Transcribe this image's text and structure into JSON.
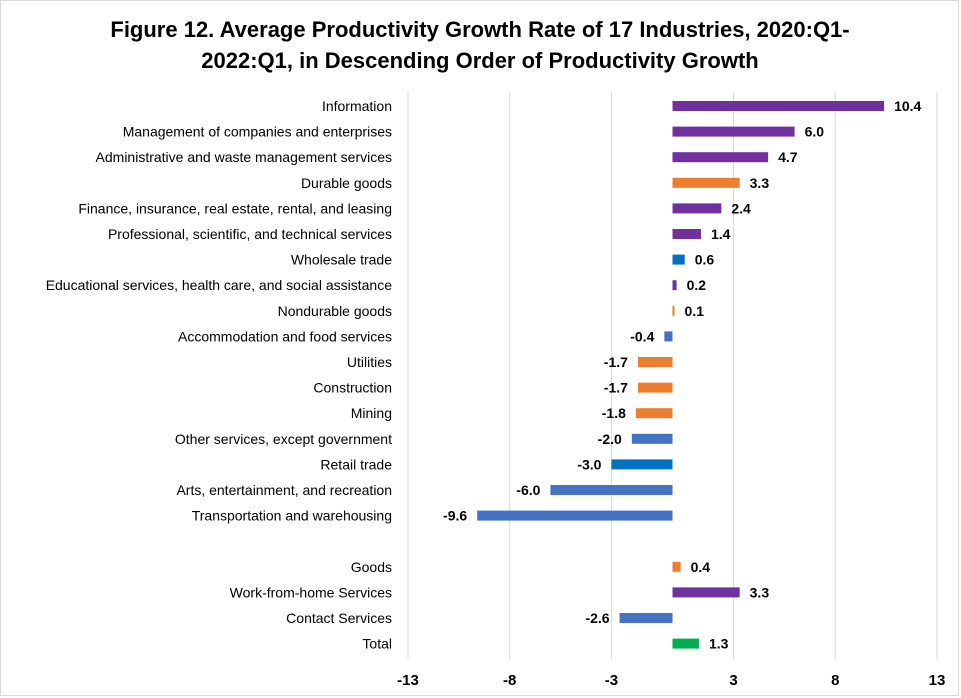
{
  "chart_data": {
    "type": "bar",
    "orientation": "horizontal",
    "title": "Figure 12. Average Productivity Growth Rate of 17 Industries, 2020:Q1-2022:Q1, in Descending Order of Productivity Growth",
    "title_lines": [
      "Figure 12. Average Productivity Growth Rate of 17 Industries, 2020:Q1-",
      "2022:Q1, in Descending Order of Productivity Growth"
    ],
    "categories": [
      "Information",
      "Management of companies and enterprises",
      "Administrative and waste management services",
      "Durable goods",
      "Finance, insurance, real estate, rental, and leasing",
      "Professional, scientific, and technical services",
      "Wholesale trade",
      "Educational services, health care, and social assistance",
      "Nondurable goods",
      "Accommodation and food services",
      "Utilities",
      "Construction",
      "Mining",
      "Other services, except government",
      "Retail trade",
      "Arts, entertainment, and recreation",
      "Transportation and warehousing",
      "",
      "Goods",
      "Work-from-home Services",
      "Contact Services",
      "Total"
    ],
    "values": [
      10.4,
      6.0,
      4.7,
      3.3,
      2.4,
      1.4,
      0.6,
      0.2,
      0.1,
      -0.4,
      -1.7,
      -1.7,
      -1.8,
      -2.0,
      -3.0,
      -6.0,
      -9.6,
      null,
      0.4,
      3.3,
      -2.6,
      1.3
    ],
    "value_labels": [
      "10.4",
      "6.0",
      "4.7",
      "3.3",
      "2.4",
      "1.4",
      "0.6",
      "0.2",
      "0.1",
      "-0.4",
      "-1.7",
      "-1.7",
      "-1.8",
      "-2.0",
      "-3.0",
      "-6.0",
      "-9.6",
      "",
      "0.4",
      "3.3",
      "-2.6",
      "1.3"
    ],
    "bar_colors": [
      "#7030a0",
      "#7030a0",
      "#7030a0",
      "#ed7d31",
      "#7030a0",
      "#7030a0",
      "#0070c0",
      "#7030a0",
      "#ed7d31",
      "#4472c4",
      "#ed7d31",
      "#ed7d31",
      "#ed7d31",
      "#4472c4",
      "#0070c0",
      "#4472c4",
      "#4472c4",
      null,
      "#ed7d31",
      "#7030a0",
      "#4472c4",
      "#00b050"
    ],
    "xlim": [
      -13,
      13
    ],
    "xticks": [
      -13,
      -8,
      -3,
      3,
      8,
      13
    ],
    "xtick_labels": [
      "-13",
      "-8",
      "-3",
      "3",
      "8",
      "13"
    ],
    "xlabel": "",
    "ylabel": "",
    "grid": "vertical",
    "legend": "none"
  }
}
